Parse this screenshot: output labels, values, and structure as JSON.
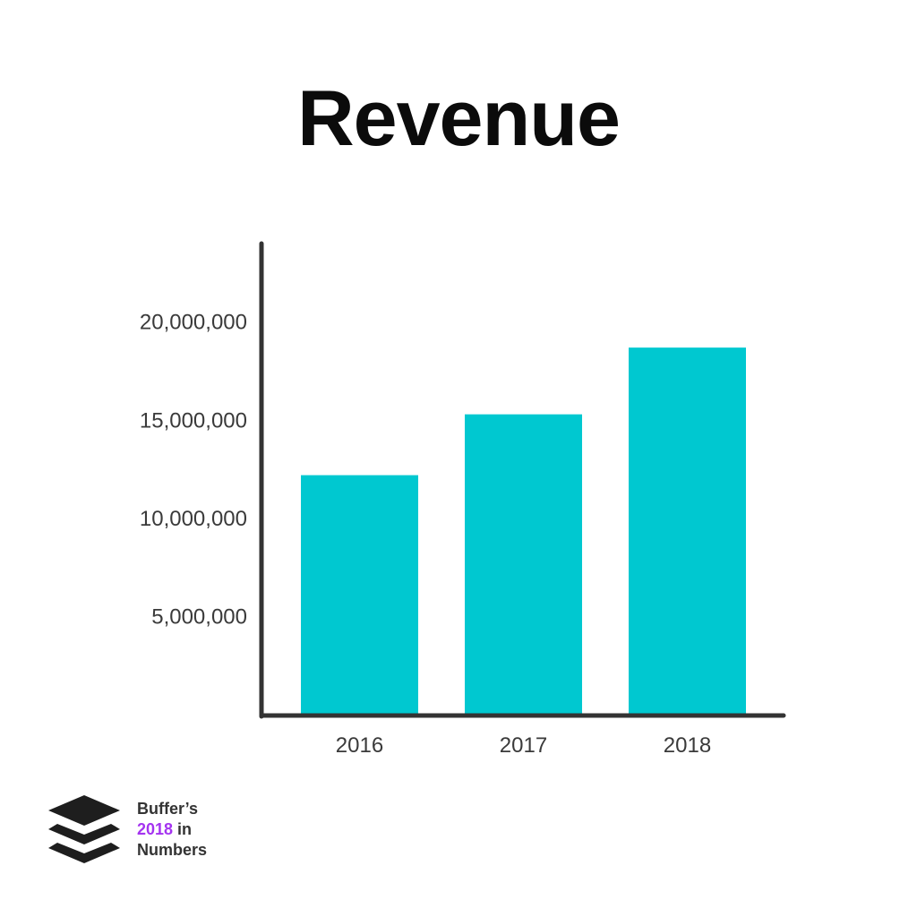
{
  "page": {
    "background": "#ffffff"
  },
  "chart_data": {
    "type": "bar",
    "title": "Revenue",
    "categories": [
      "2016",
      "2017",
      "2018"
    ],
    "values": [
      12200000,
      15300000,
      18700000
    ],
    "ylim": [
      0,
      24000000
    ],
    "yticks": [
      5000000,
      10000000,
      15000000,
      20000000
    ],
    "ytick_labels": [
      "5,000,000",
      "10,000,000",
      "15,000,000",
      "20,000,000"
    ],
    "xlabel": "",
    "ylabel": "",
    "grid": false,
    "legend": "none",
    "colors": {
      "bar": "#00c8d0",
      "axis": "#333333",
      "text": "#3a3a3a",
      "title": "#0b0b0b"
    }
  },
  "logo": {
    "icon": "buffer-stack-icon",
    "line1": "Buffer’s",
    "year": "2018",
    "in_word": " in",
    "line3": "Numbers",
    "accent_color": "#a433f0"
  }
}
